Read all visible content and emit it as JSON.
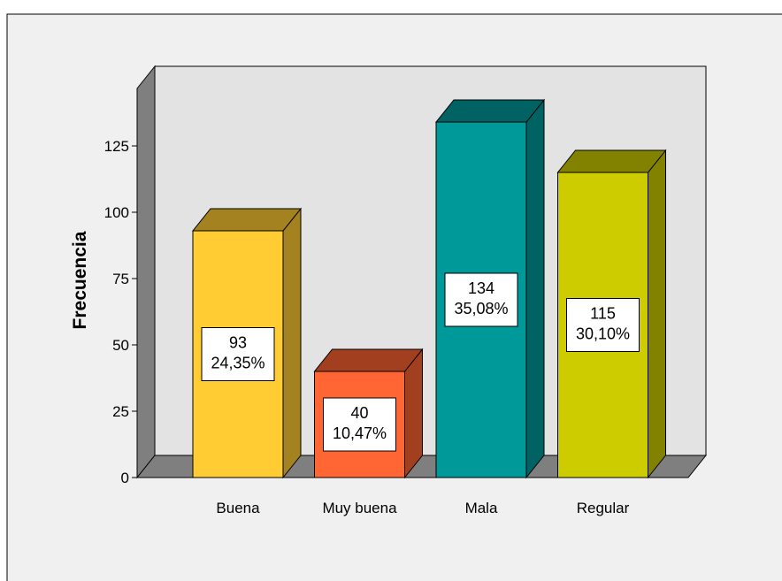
{
  "chart_data": {
    "type": "bar",
    "title": "",
    "xlabel": "",
    "ylabel": "Frecuencia",
    "ylim": [
      0,
      150
    ],
    "yticks": [
      0,
      25,
      50,
      75,
      100,
      125
    ],
    "categories": [
      "Buena",
      "Muy buena",
      "Mala",
      "Regular"
    ],
    "values": [
      93,
      40,
      134,
      115
    ],
    "labels": [
      {
        "count": "93",
        "percent": "24,35%"
      },
      {
        "count": "40",
        "percent": "10,47%"
      },
      {
        "count": "134",
        "percent": "35,08%"
      },
      {
        "count": "115",
        "percent": "30,10%"
      }
    ],
    "colors": {
      "front": [
        "#FFCC33",
        "#FF6633",
        "#009999",
        "#CCCC00"
      ],
      "side": [
        "#A3821F",
        "#A23F1F",
        "#006262",
        "#828200"
      ],
      "top": [
        "#A3821F",
        "#A23F1F",
        "#006262",
        "#828200"
      ],
      "plot_background": "#E3E3E3",
      "floor": "#7F7F7F",
      "outer_background": "#F0F0F0"
    },
    "grid": false,
    "legend": "none",
    "style": "3d"
  }
}
